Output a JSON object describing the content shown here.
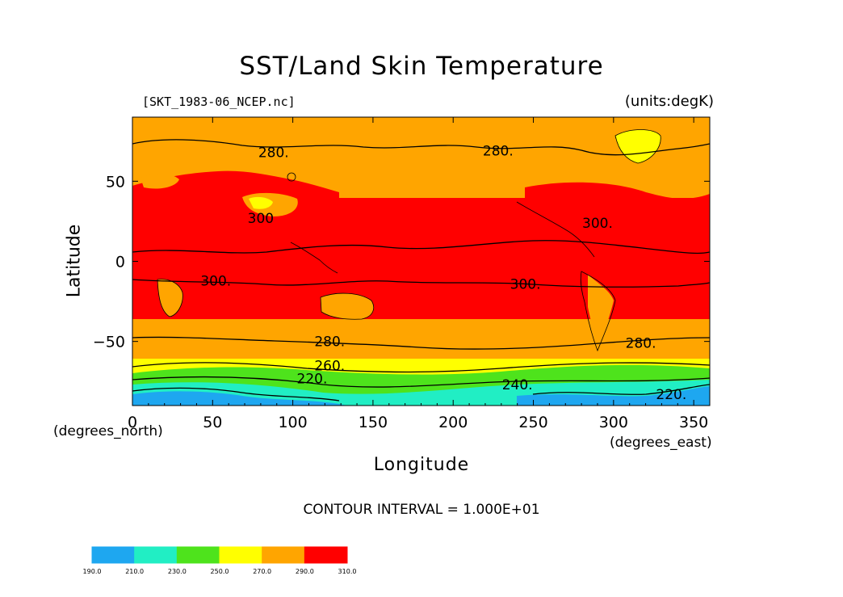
{
  "figure": {
    "title": "SST/Land Skin Temperature",
    "source_label": "[SKT_1983-06_NCEP.nc]",
    "units_label": "(units:degK)",
    "y_axis_label": "Latitude",
    "x_axis_label": "Longitude",
    "y_units_label": "(degrees_north)",
    "x_units_label": "(degrees_east)",
    "contour_interval_label": "CONTOUR INTERVAL = 1.000E+01"
  },
  "axes": {
    "x_range": [
      0,
      360
    ],
    "y_range": [
      -90,
      90
    ],
    "x_ticks": [
      0,
      50,
      100,
      150,
      200,
      250,
      300,
      350
    ],
    "x_tick_labels": [
      "0",
      "50",
      "100",
      "150",
      "200",
      "250",
      "300",
      "350"
    ],
    "y_ticks": [
      50,
      0,
      -50
    ],
    "y_tick_labels": [
      "50",
      "0",
      "−50"
    ]
  },
  "colorbar": {
    "colors": [
      "#1ea7f0",
      "#21eec4",
      "#4ee31c",
      "#ffff00",
      "#ffa500",
      "#ff0000"
    ],
    "tick_labels": [
      "190.0",
      "210.0",
      "230.0",
      "250.0",
      "270.0",
      "290.0",
      "310.0"
    ]
  },
  "contour_labels": [
    {
      "text": "280.",
      "lon": 88,
      "lat": 68
    },
    {
      "text": "280.",
      "lon": 228,
      "lat": 69
    },
    {
      "text": "300",
      "lon": 80,
      "lat": 27
    },
    {
      "text": "300.",
      "lon": 290,
      "lat": 24
    },
    {
      "text": "300.",
      "lon": 52,
      "lat": -12
    },
    {
      "text": "300.",
      "lon": 245,
      "lat": -14
    },
    {
      "text": "280.",
      "lon": 123,
      "lat": -50
    },
    {
      "text": "280.",
      "lon": 317,
      "lat": -51
    },
    {
      "text": "260.",
      "lon": 123,
      "lat": -65
    },
    {
      "text": "220.",
      "lon": 112,
      "lat": -73
    },
    {
      "text": "240.",
      "lon": 240,
      "lat": -77
    },
    {
      "text": "220.",
      "lon": 336,
      "lat": -83
    }
  ]
}
